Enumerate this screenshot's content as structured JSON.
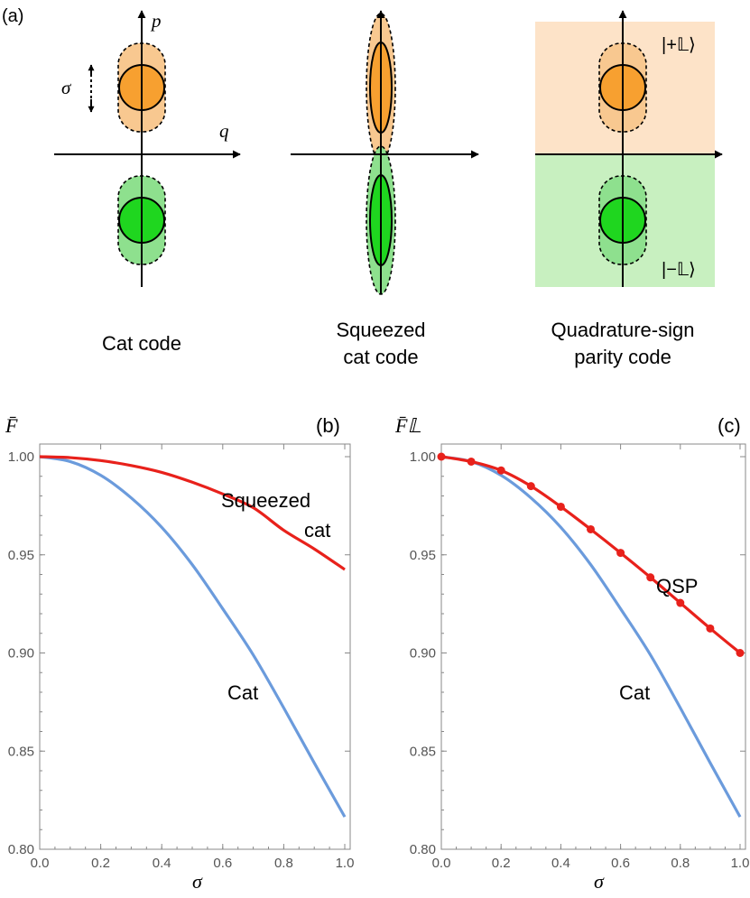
{
  "panel_a": {
    "label": "(a)",
    "axis_p": "p",
    "axis_q": "q",
    "sigma_symbol": "σ",
    "captions": {
      "cat_line1": "Cat code",
      "squeezed_line1": "Squeezed",
      "squeezed_line2": "cat code",
      "qsp_line1": "Quadrature-sign",
      "qsp_line2": "parity code"
    },
    "ket_plus": "|+𝕃⟩",
    "ket_minus": "|−𝕃⟩",
    "colors": {
      "orange": "#f7a030",
      "orange_light": "#f8c890",
      "orange_bg": "#fde3c8",
      "green": "#1fd61f",
      "green_light": "#8ee08e",
      "green_bg": "#c8f0c0"
    }
  },
  "chart_data": [
    {
      "panel": "(b)",
      "type": "line",
      "ylabel": "F̄",
      "xlabel": "σ",
      "xlim": [
        0,
        1
      ],
      "ylim": [
        0.8,
        1.0
      ],
      "xticks": [
        "0.0",
        "0.2",
        "0.4",
        "0.6",
        "0.8",
        "1.0"
      ],
      "yticks": [
        "0.80",
        "0.85",
        "0.90",
        "0.95",
        "1.00"
      ],
      "series": [
        {
          "name": "Squeezed cat",
          "label_line1": "Squeezed",
          "label_line2": "cat",
          "color": "#e8211b",
          "x": [
            0.0,
            0.1,
            0.2,
            0.3,
            0.4,
            0.5,
            0.6,
            0.7,
            0.8,
            0.9,
            1.0
          ],
          "y": [
            1.0,
            0.9995,
            0.998,
            0.9955,
            0.992,
            0.987,
            0.981,
            0.974,
            0.9625,
            0.953,
            0.9425
          ]
        },
        {
          "name": "Cat",
          "label_line1": "Cat",
          "color": "#6b9bdc",
          "x": [
            0.0,
            0.1,
            0.2,
            0.3,
            0.4,
            0.5,
            0.6,
            0.7,
            0.8,
            0.9,
            1.0
          ],
          "y": [
            1.0,
            0.9975,
            0.9905,
            0.979,
            0.964,
            0.945,
            0.9225,
            0.899,
            0.872,
            0.844,
            0.8165
          ]
        }
      ]
    },
    {
      "panel": "(c)",
      "type": "line",
      "ylabel": "F̄𝕃",
      "xlabel": "σ",
      "xlim": [
        0,
        1
      ],
      "ylim": [
        0.8,
        1.0
      ],
      "xticks": [
        "0.0",
        "0.2",
        "0.4",
        "0.6",
        "0.8",
        "1.0"
      ],
      "yticks": [
        "0.80",
        "0.85",
        "0.90",
        "0.95",
        "1.00"
      ],
      "series": [
        {
          "name": "QSP",
          "label_line1": "QSP",
          "color": "#e8211b",
          "markers": true,
          "x": [
            0.0,
            0.1,
            0.2,
            0.3,
            0.4,
            0.5,
            0.6,
            0.7,
            0.8,
            0.9,
            1.0
          ],
          "y": [
            1.0,
            0.9975,
            0.993,
            0.985,
            0.9745,
            0.963,
            0.951,
            0.9385,
            0.9255,
            0.9125,
            0.9
          ]
        },
        {
          "name": "Cat",
          "label_line1": "Cat",
          "color": "#6b9bdc",
          "x": [
            0.0,
            0.1,
            0.2,
            0.3,
            0.4,
            0.5,
            0.6,
            0.7,
            0.8,
            0.9,
            1.0
          ],
          "y": [
            1.0,
            0.9975,
            0.9905,
            0.979,
            0.964,
            0.945,
            0.9225,
            0.899,
            0.872,
            0.844,
            0.8165
          ]
        }
      ]
    }
  ]
}
